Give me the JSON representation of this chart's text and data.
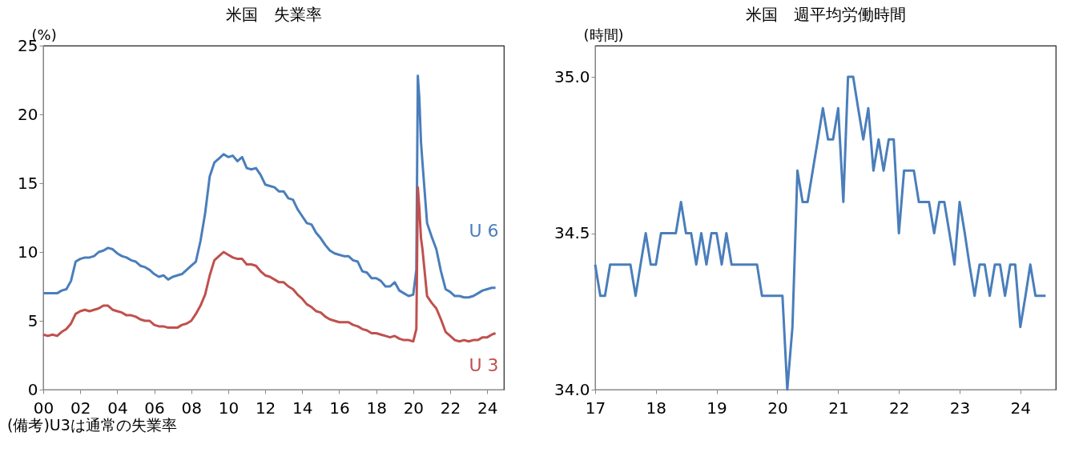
{
  "chart_data": [
    {
      "type": "line",
      "title": "米国　失業率",
      "ylabel": "(%)",
      "xlim": [
        2000,
        2024.9
      ],
      "ylim": [
        0,
        25
      ],
      "xticks": [
        {
          "value": 2000,
          "label": "00"
        },
        {
          "value": 2002,
          "label": "02"
        },
        {
          "value": 2004,
          "label": "04"
        },
        {
          "value": 2006,
          "label": "06"
        },
        {
          "value": 2008,
          "label": "08"
        },
        {
          "value": 2010,
          "label": "10"
        },
        {
          "value": 2012,
          "label": "12"
        },
        {
          "value": 2014,
          "label": "14"
        },
        {
          "value": 2016,
          "label": "16"
        },
        {
          "value": 2018,
          "label": "18"
        },
        {
          "value": 2020,
          "label": "20"
        },
        {
          "value": 2022,
          "label": "22"
        },
        {
          "value": 2024,
          "label": "24"
        }
      ],
      "yticks": [
        0,
        5,
        10,
        15,
        20,
        25
      ],
      "series": [
        {
          "name": "U 6",
          "color": "#4a7ebb",
          "x": [
            2000,
            2000.25,
            2000.5,
            2000.75,
            2001,
            2001.25,
            2001.5,
            2001.75,
            2002,
            2002.25,
            2002.5,
            2002.75,
            2003,
            2003.25,
            2003.5,
            2003.75,
            2004,
            2004.25,
            2004.5,
            2004.75,
            2005,
            2005.25,
            2005.5,
            2005.75,
            2006,
            2006.25,
            2006.5,
            2006.75,
            2007,
            2007.25,
            2007.5,
            2007.75,
            2008,
            2008.25,
            2008.5,
            2008.75,
            2009,
            2009.25,
            2009.5,
            2009.75,
            2010,
            2010.25,
            2010.5,
            2010.75,
            2011,
            2011.25,
            2011.5,
            2011.75,
            2012,
            2012.25,
            2012.5,
            2012.75,
            2013,
            2013.25,
            2013.5,
            2013.75,
            2014,
            2014.25,
            2014.5,
            2014.75,
            2015,
            2015.25,
            2015.5,
            2015.75,
            2016,
            2016.25,
            2016.5,
            2016.75,
            2017,
            2017.25,
            2017.5,
            2017.75,
            2018,
            2018.25,
            2018.5,
            2018.75,
            2019,
            2019.25,
            2019.5,
            2019.75,
            2020,
            2020.17,
            2020.25,
            2020.33,
            2020.42,
            2020.5,
            2020.75,
            2021,
            2021.25,
            2021.5,
            2021.75,
            2022,
            2022.25,
            2022.5,
            2022.75,
            2023,
            2023.25,
            2023.5,
            2023.75,
            2024,
            2024.25,
            2024.45
          ],
          "values": [
            7.0,
            7.0,
            7.0,
            7.0,
            7.2,
            7.3,
            7.9,
            9.3,
            9.5,
            9.6,
            9.6,
            9.7,
            10.0,
            10.1,
            10.3,
            10.2,
            9.9,
            9.7,
            9.6,
            9.4,
            9.3,
            9.0,
            8.9,
            8.7,
            8.4,
            8.2,
            8.3,
            8.0,
            8.2,
            8.3,
            8.4,
            8.7,
            9.0,
            9.3,
            10.8,
            12.8,
            15.5,
            16.5,
            16.8,
            17.1,
            16.9,
            17.0,
            16.6,
            16.9,
            16.1,
            16.0,
            16.1,
            15.6,
            14.9,
            14.8,
            14.7,
            14.4,
            14.4,
            13.9,
            13.8,
            13.1,
            12.6,
            12.1,
            12.0,
            11.4,
            11.0,
            10.5,
            10.1,
            9.9,
            9.8,
            9.7,
            9.7,
            9.4,
            9.3,
            8.6,
            8.5,
            8.1,
            8.1,
            7.9,
            7.5,
            7.5,
            7.8,
            7.2,
            7.0,
            6.8,
            6.9,
            8.7,
            22.8,
            21.2,
            18.0,
            16.5,
            12.1,
            11.1,
            10.2,
            8.6,
            7.3,
            7.1,
            6.8,
            6.8,
            6.7,
            6.7,
            6.8,
            7.0,
            7.2,
            7.3,
            7.4,
            7.4
          ]
        },
        {
          "name": "U 3",
          "color": "#c0504d",
          "x": [
            2000,
            2000.25,
            2000.5,
            2000.75,
            2001,
            2001.25,
            2001.5,
            2001.75,
            2002,
            2002.25,
            2002.5,
            2002.75,
            2003,
            2003.25,
            2003.5,
            2003.75,
            2004,
            2004.25,
            2004.5,
            2004.75,
            2005,
            2005.25,
            2005.5,
            2005.75,
            2006,
            2006.25,
            2006.5,
            2006.75,
            2007,
            2007.25,
            2007.5,
            2007.75,
            2008,
            2008.25,
            2008.5,
            2008.75,
            2009,
            2009.25,
            2009.5,
            2009.75,
            2010,
            2010.25,
            2010.5,
            2010.75,
            2011,
            2011.25,
            2011.5,
            2011.75,
            2012,
            2012.25,
            2012.5,
            2012.75,
            2013,
            2013.25,
            2013.5,
            2013.75,
            2014,
            2014.25,
            2014.5,
            2014.75,
            2015,
            2015.25,
            2015.5,
            2015.75,
            2016,
            2016.25,
            2016.5,
            2016.75,
            2017,
            2017.25,
            2017.5,
            2017.75,
            2018,
            2018.25,
            2018.5,
            2018.75,
            2019,
            2019.25,
            2019.5,
            2019.75,
            2020,
            2020.17,
            2020.25,
            2020.33,
            2020.42,
            2020.5,
            2020.75,
            2021,
            2021.25,
            2021.5,
            2021.75,
            2022,
            2022.25,
            2022.5,
            2022.75,
            2023,
            2023.25,
            2023.5,
            2023.75,
            2024,
            2024.25,
            2024.45
          ],
          "values": [
            4.0,
            3.9,
            4.0,
            3.9,
            4.2,
            4.4,
            4.8,
            5.5,
            5.7,
            5.8,
            5.7,
            5.8,
            5.9,
            6.1,
            6.1,
            5.8,
            5.7,
            5.6,
            5.4,
            5.4,
            5.3,
            5.1,
            5.0,
            5.0,
            4.7,
            4.6,
            4.6,
            4.5,
            4.5,
            4.5,
            4.7,
            4.8,
            5.0,
            5.5,
            6.1,
            6.9,
            8.3,
            9.4,
            9.7,
            10.0,
            9.8,
            9.6,
            9.5,
            9.5,
            9.1,
            9.1,
            9.0,
            8.6,
            8.3,
            8.2,
            8.0,
            7.8,
            7.8,
            7.5,
            7.3,
            6.9,
            6.6,
            6.2,
            6.0,
            5.7,
            5.6,
            5.3,
            5.1,
            5.0,
            4.9,
            4.9,
            4.9,
            4.7,
            4.6,
            4.4,
            4.3,
            4.1,
            4.1,
            4.0,
            3.9,
            3.8,
            3.9,
            3.7,
            3.6,
            3.6,
            3.5,
            4.4,
            14.7,
            13.2,
            11.0,
            10.2,
            6.8,
            6.3,
            5.9,
            5.1,
            4.2,
            3.9,
            3.6,
            3.5,
            3.6,
            3.5,
            3.6,
            3.6,
            3.8,
            3.8,
            4.0,
            4.1
          ]
        }
      ],
      "annotations": [
        "(備考)U3は通常の失業率"
      ]
    },
    {
      "type": "line",
      "title": "米国　週平均労働時間",
      "ylabel": "(時間)",
      "xlim": [
        "2017-01",
        "2024-08"
      ],
      "ylim": [
        34.0,
        35.1
      ],
      "xticks": [
        {
          "value": "2017-01",
          "label": "17"
        },
        {
          "value": "2018-01",
          "label": "18"
        },
        {
          "value": "2019-01",
          "label": "19"
        },
        {
          "value": "2020-01",
          "label": "20"
        },
        {
          "value": "2021-01",
          "label": "21"
        },
        {
          "value": "2022-01",
          "label": "22"
        },
        {
          "value": "2023-01",
          "label": "23"
        },
        {
          "value": "2024-01",
          "label": "24"
        }
      ],
      "yticks": [
        {
          "value": 34.0,
          "label": "34.0"
        },
        {
          "value": 34.5,
          "label": "34.5"
        },
        {
          "value": 35.0,
          "label": "35.0"
        }
      ],
      "series": [
        {
          "color": "#4a7ebb",
          "x": [
            "2017-01",
            "2017-02",
            "2017-03",
            "2017-04",
            "2017-05",
            "2017-06",
            "2017-07",
            "2017-08",
            "2017-09",
            "2017-10",
            "2017-11",
            "2017-12",
            "2018-01",
            "2018-02",
            "2018-03",
            "2018-04",
            "2018-05",
            "2018-06",
            "2018-07",
            "2018-08",
            "2018-09",
            "2018-10",
            "2018-11",
            "2018-12",
            "2019-01",
            "2019-02",
            "2019-03",
            "2019-04",
            "2019-05",
            "2019-06",
            "2019-07",
            "2019-08",
            "2019-09",
            "2019-10",
            "2019-11",
            "2019-12",
            "2020-01",
            "2020-02",
            "2020-03",
            "2020-04",
            "2020-05",
            "2020-06",
            "2020-07",
            "2020-08",
            "2020-09",
            "2020-10",
            "2020-11",
            "2020-12",
            "2021-01",
            "2021-02",
            "2021-03",
            "2021-04",
            "2021-05",
            "2021-06",
            "2021-07",
            "2021-08",
            "2021-09",
            "2021-10",
            "2021-11",
            "2021-12",
            "2022-01",
            "2022-02",
            "2022-03",
            "2022-04",
            "2022-05",
            "2022-06",
            "2022-07",
            "2022-08",
            "2022-09",
            "2022-10",
            "2022-11",
            "2022-12",
            "2023-01",
            "2023-02",
            "2023-03",
            "2023-04",
            "2023-05",
            "2023-06",
            "2023-07",
            "2023-08",
            "2023-09",
            "2023-10",
            "2023-11",
            "2023-12",
            "2024-01",
            "2024-02",
            "2024-03",
            "2024-04",
            "2024-05",
            "2024-06"
          ],
          "values": [
            34.4,
            34.3,
            34.3,
            34.4,
            34.4,
            34.4,
            34.4,
            34.4,
            34.3,
            34.4,
            34.5,
            34.4,
            34.4,
            34.5,
            34.5,
            34.5,
            34.5,
            34.6,
            34.5,
            34.5,
            34.4,
            34.5,
            34.4,
            34.5,
            34.5,
            34.4,
            34.5,
            34.4,
            34.4,
            34.4,
            34.4,
            34.4,
            34.4,
            34.3,
            34.3,
            34.3,
            34.3,
            34.3,
            34.0,
            34.2,
            34.7,
            34.6,
            34.6,
            34.7,
            34.8,
            34.9,
            34.8,
            34.8,
            34.9,
            34.6,
            35.0,
            35.0,
            34.9,
            34.8,
            34.9,
            34.7,
            34.8,
            34.7,
            34.8,
            34.8,
            34.5,
            34.7,
            34.7,
            34.7,
            34.6,
            34.6,
            34.6,
            34.5,
            34.6,
            34.6,
            34.5,
            34.4,
            34.6,
            34.5,
            34.4,
            34.3,
            34.4,
            34.4,
            34.3,
            34.4,
            34.4,
            34.3,
            34.4,
            34.4,
            34.2,
            34.3,
            34.4,
            34.3,
            34.3,
            34.3
          ]
        }
      ]
    }
  ]
}
